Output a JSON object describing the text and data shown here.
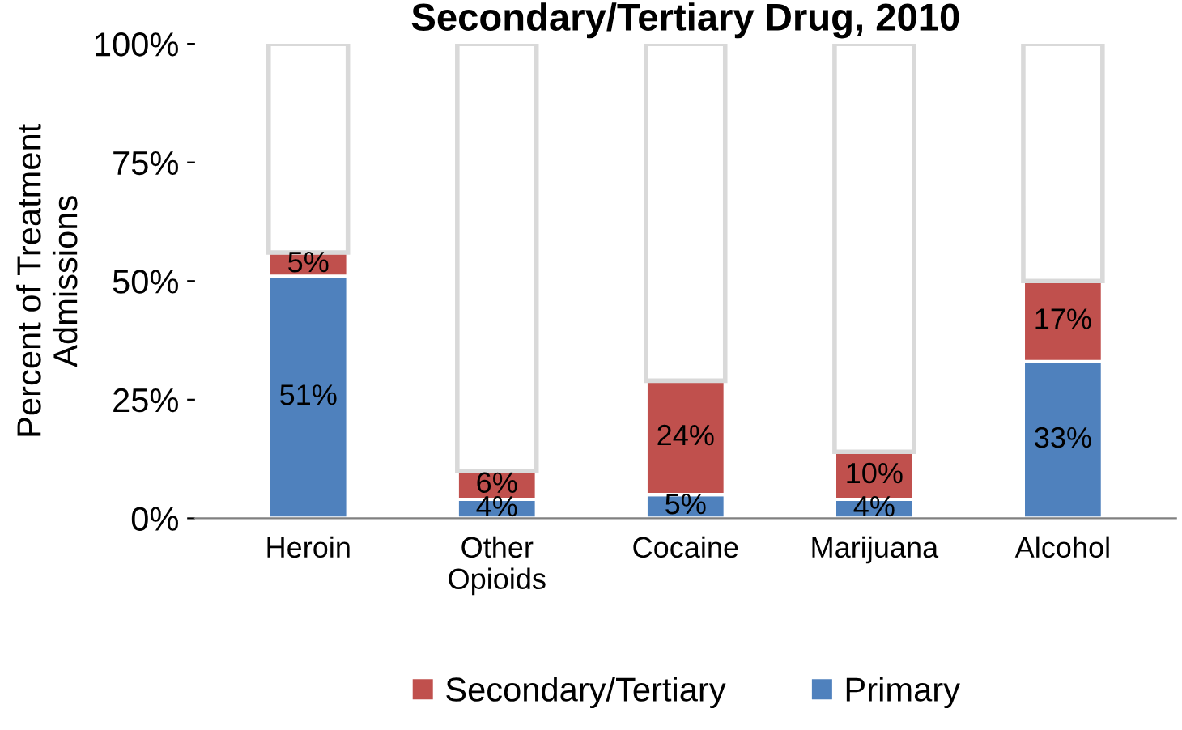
{
  "chart_data": {
    "type": "bar",
    "title": "Secondary/Tertiary Drug, 2010",
    "ylabel": "Percent of Treatment\nAdmissions",
    "categories": [
      "Heroin",
      "Other\nOpioids",
      "Cocaine",
      "Marijuana",
      "Alcohol"
    ],
    "stacked": true,
    "series": [
      {
        "name": "Primary",
        "color": "#4f81bd",
        "values": [
          51,
          4,
          5,
          4,
          33
        ],
        "value_labels": [
          "51%",
          "4%",
          "5%",
          "4%",
          "33%"
        ]
      },
      {
        "name": "Secondary/Tertiary",
        "color": "#c0504d",
        "values": [
          5,
          6,
          24,
          10,
          17
        ],
        "value_labels": [
          "5%",
          "6%",
          "24%",
          "10%",
          "17%"
        ]
      },
      {
        "color": "#ffffff",
        "values": [
          44,
          90,
          71,
          86,
          50
        ]
      }
    ],
    "ylim": [
      0,
      100
    ],
    "yticks": [
      {
        "value": 0,
        "label": "0%"
      },
      {
        "value": 25,
        "label": "25%"
      },
      {
        "value": 50,
        "label": "50%"
      },
      {
        "value": 75,
        "label": "75%"
      },
      {
        "value": 100,
        "label": "100%"
      }
    ],
    "legend": "bottom"
  }
}
